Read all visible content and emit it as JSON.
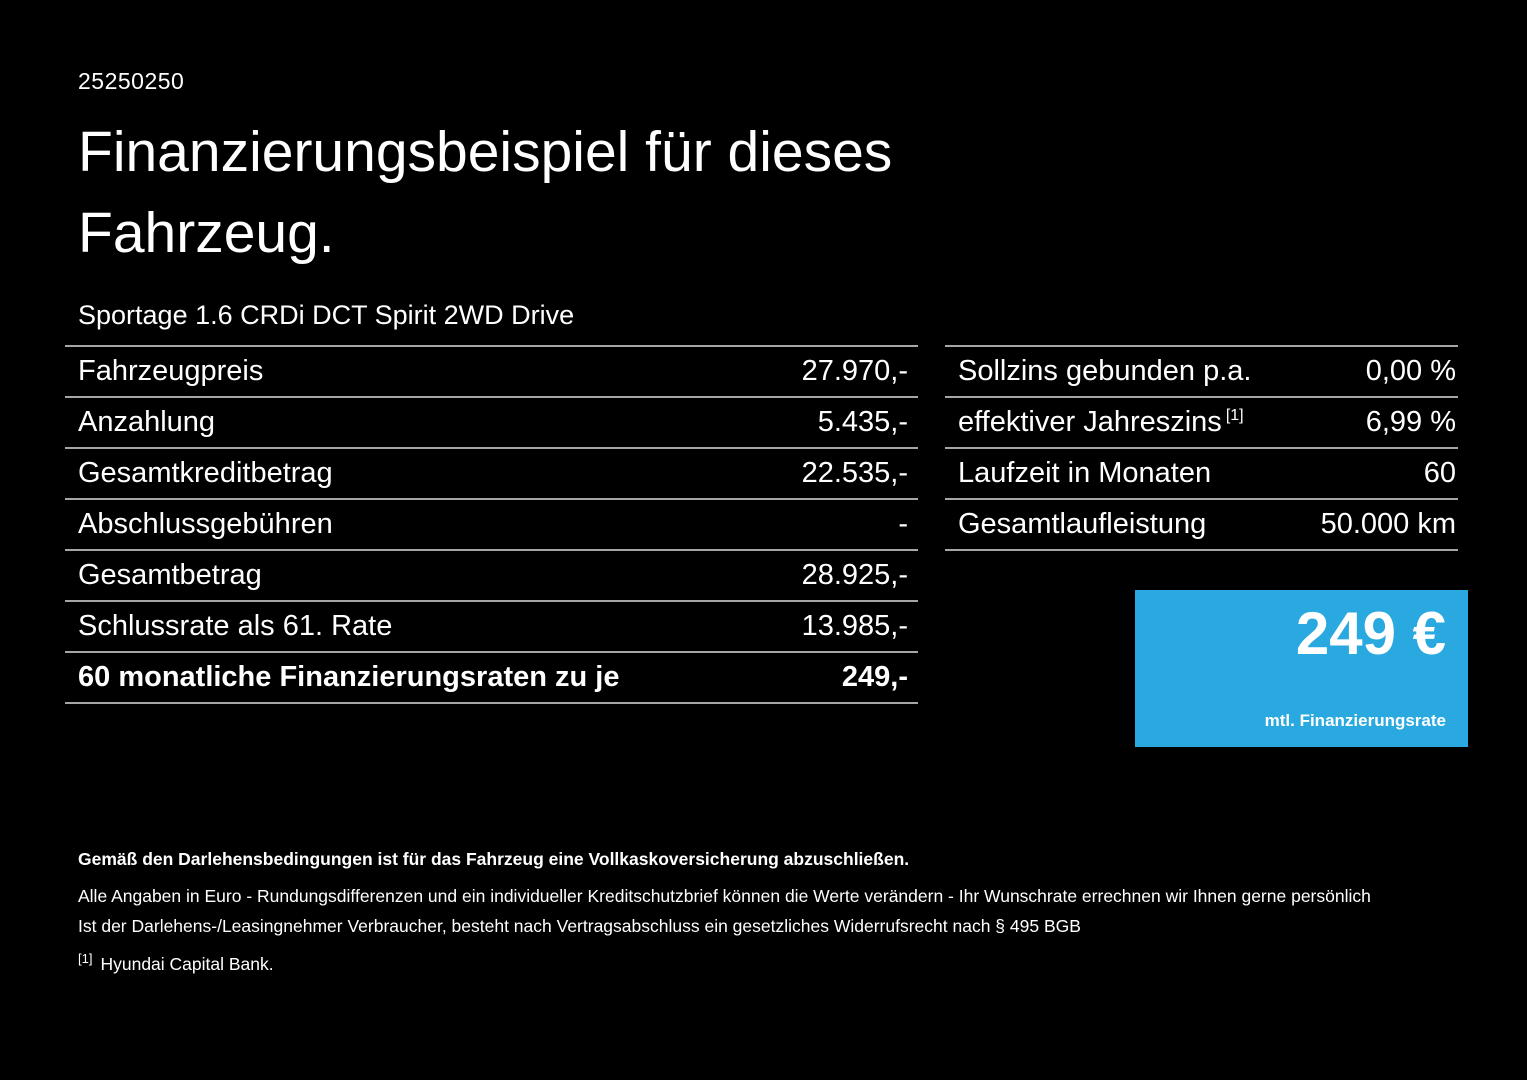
{
  "header": {
    "id_number": "25250250",
    "title": "Finanzierungsbeispiel für dieses Fahrzeug.",
    "vehicle": "Sportage 1.6 CRDi DCT Spirit 2WD Drive"
  },
  "left_table": {
    "rows": [
      {
        "label": "Fahrzeugpreis",
        "value": "27.970,-"
      },
      {
        "label": "Anzahlung",
        "value": "5.435,-"
      },
      {
        "label": "Gesamtkreditbetrag",
        "value": "22.535,-"
      },
      {
        "label": "Abschlussgebühren",
        "value": "-"
      },
      {
        "label": "Gesamtbetrag",
        "value": "28.925,-"
      },
      {
        "label": "Schlussrate als 61. Rate",
        "value": "13.985,-"
      },
      {
        "label": "60 monatliche Finanzierungsraten zu je",
        "value": "249,-"
      }
    ]
  },
  "right_table": {
    "rows": [
      {
        "label": "Sollzins gebunden p.a.",
        "sup": "",
        "value": "0,00 %"
      },
      {
        "label": "effektiver Jahreszins",
        "sup": "[1]",
        "value": "6,99 %"
      },
      {
        "label": "Laufzeit in Monaten",
        "sup": "",
        "value": "60"
      },
      {
        "label": "Gesamtlaufleistung",
        "sup": "",
        "value": "50.000 km"
      }
    ]
  },
  "rate_box": {
    "amount": "249 €",
    "caption": "mtl. Finanzierungsrate",
    "background": "#29a9e0"
  },
  "footnotes": {
    "bold_note": "Gemäß den Darlehensbedingungen ist für das Fahrzeug eine Vollkaskoversicherung abzuschließen.",
    "note1": "Alle Angaben in Euro - Rundungsdifferenzen und ein individueller Kreditschutzbrief können die Werte verändern - Ihr Wunschrate errechnen wir Ihnen gerne persönlich",
    "note2": "Ist der Darlehens-/Leasingnehmer Verbraucher, besteht nach Vertragsabschluss ein gesetzliches Widerrufsrecht nach § 495 BGB",
    "ref_marker": "[1]",
    "ref_text": "Hyundai Capital Bank."
  }
}
